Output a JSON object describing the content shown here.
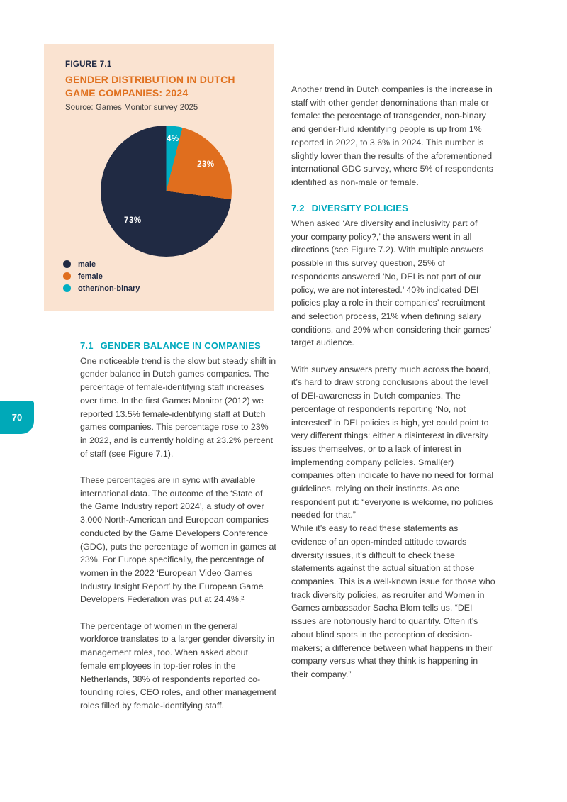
{
  "page": {
    "number": "70"
  },
  "colors": {
    "panel_background": "#fae3d1",
    "accent_orange": "#e0711f",
    "accent_teal": "#00a9bd",
    "tab_teal": "#00a9b8",
    "navy": "#202a43",
    "body_text": "#3f3f3e"
  },
  "figure": {
    "label": "FIGURE 7.1",
    "title": "GENDER DISTRIBUTION IN DUTCH\nGAME COMPANIES: 2024",
    "source": "Source: Games Monitor survey 2025"
  },
  "chart_data": {
    "type": "pie",
    "title": "Gender distribution in Dutch game companies: 2024",
    "series": [
      {
        "label": "male",
        "value": 73,
        "value_label": "73%",
        "color": "#202a43"
      },
      {
        "label": "female",
        "value": 23,
        "value_label": "23%",
        "color": "#e06e1e"
      },
      {
        "label": "other/non-binary",
        "value": 4,
        "value_label": "4%",
        "color": "#00aec2"
      }
    ],
    "start_angle_deg": 0,
    "draw_order_clockwise_from_top": [
      "other/non-binary",
      "female",
      "male"
    ],
    "legend_position": "bottom-left"
  },
  "left_column": {
    "section": {
      "number": "7.1",
      "title": "GENDER BALANCE IN COMPANIES"
    },
    "paragraphs": [
      "One noticeable trend is the slow but steady shift in gender balance in Dutch games companies. The percentage of female-identifying staff increases over time. In the first Games Monitor (2012) we reported 13.5% female-identifying staff at Dutch games companies. This percentage rose to 23% in 2022, and is currently holding at 23.2% percent of staff (see Figure 7.1).",
      "These percentages are in sync with available international data. The outcome of the ‘State of the Game Industry report 2024’, a study of over 3,000 North-American and European companies conducted by the Game Developers Conference (GDC), puts the percentage of women in games at 23%. For Europe specifically, the percentage of women in the 2022 ‘European Video Games Industry Insight Report’ by the European Game Developers Federation was put at 24.4%.²",
      "The percentage of women in the general workforce translates to a larger gender diversity in management roles, too. When asked about female employees in top-tier roles in the Netherlands, 38% of respondents reported co-founding roles, CEO roles, and other management roles filled by female-identifying staff."
    ]
  },
  "right_column": {
    "intro": "Another trend in Dutch companies is the increase in staff with other gender denominations than male or female: the percentage of transgender, non-binary and gender-fluid identifying people is up from 1% reported in 2022, to 3.6% in 2024. This number is slightly lower than the results of the aforementioned international GDC survey, where 5% of respondents identified as non-male or female.",
    "section": {
      "number": "7.2",
      "title": "DIVERSITY POLICIES"
    },
    "paragraphs": [
      "When asked ‘Are diversity and inclusivity part of your company policy?,’ the answers went in all directions (see Figure 7.2). With multiple answers possible in this survey question, 25% of respondents answered ‘No, DEI is not part of our policy, we are not interested.’ 40% indicated DEI policies play a role in their companies’ recruitment and selection process, 21% when defining salary conditions, and 29% when considering their games’ target audience.",
      "With survey answers pretty much across the board, it’s hard to draw strong conclusions about the level of DEI-awareness in Dutch companies. The percentage of respondents reporting ‘No, not interested’ in DEI policies is high, yet could point to very different things: either a disinterest in diversity issues themselves, or to a lack of interest in implementing company policies. Small(er) companies often indicate to have no need for formal guidelines, relying on their instincts. As one respondent put it: “everyone is welcome, no policies needed for that.”\nWhile it’s easy to read these statements as evidence of an open-minded attitude towards diversity issues, it’s difficult to check these statements against the actual situation at those companies. This is a well-known issue for those who track diversity policies, as recruiter and Women in Games ambassador Sacha Blom tells us. “DEI issues are notoriously hard to quantify. Often it’s about blind spots in the perception of decision-makers; a difference between what happens in their company versus what they think is happening in their company.”"
    ]
  }
}
